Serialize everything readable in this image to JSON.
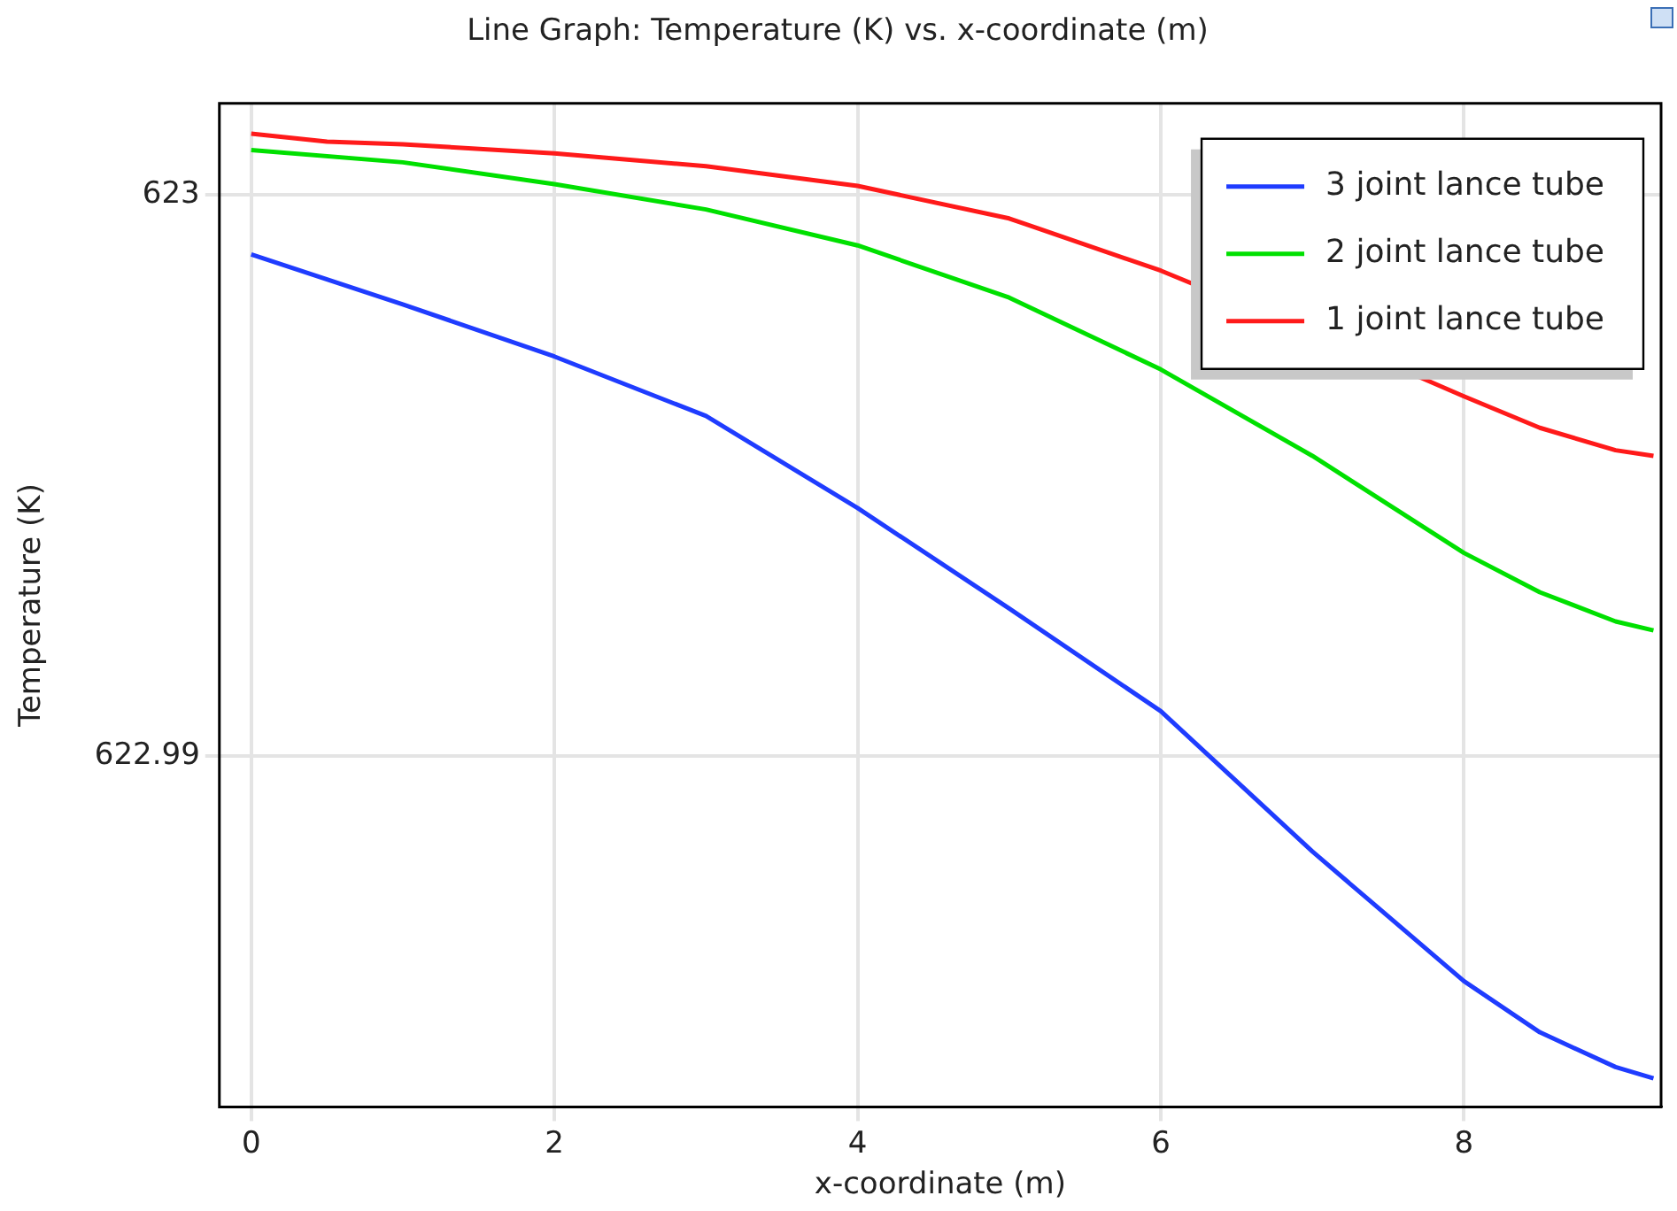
{
  "chart_data": {
    "type": "line",
    "title": "Line Graph: Temperature (K) vs. x-coordinate (m)",
    "xlabel": "x-coordinate (m)",
    "ylabel": "Temperature (K)",
    "xlim": [
      -0.21,
      9.3
    ],
    "xticks": [
      0,
      2,
      4,
      6,
      8
    ],
    "ylim": [
      622.98375,
      623.00163
    ],
    "yticks": [
      622.99,
      623
    ],
    "grid": true,
    "legend": "top right",
    "marker": "none",
    "line_style": "solid",
    "series": [
      {
        "name": "3 joint lance tube",
        "color": "#1f3cff",
        "x": [
          0,
          1,
          2,
          3,
          4,
          5,
          6,
          7,
          8,
          8.5,
          9,
          9.25
        ],
        "values": [
          622.99894,
          622.99805,
          622.99712,
          622.99606,
          622.99442,
          622.99263,
          622.9908,
          622.9883,
          622.98599,
          622.98508,
          622.98446,
          622.98426
        ]
      },
      {
        "name": "2 joint lance tube",
        "color": "#00e000",
        "x": [
          0,
          1,
          2,
          3,
          4,
          5,
          6,
          7,
          8,
          8.5,
          9,
          9.25
        ],
        "values": [
          623.0008,
          623.00058,
          623.00019,
          622.99974,
          622.9991,
          622.99817,
          622.99689,
          622.99535,
          622.99362,
          622.99292,
          622.9924,
          622.99224
        ]
      },
      {
        "name": "1 joint lance tube",
        "color": "#ff1a1a",
        "x": [
          0,
          0.5,
          1,
          2,
          3,
          4,
          5,
          6,
          7.7,
          8,
          8.5,
          9,
          9.25
        ],
        "values": [
          623.00109,
          623.00095,
          623.0009,
          623.00074,
          623.00051,
          623.00016,
          622.99958,
          622.99865,
          622.99676,
          622.99641,
          622.99585,
          622.99545,
          622.99535
        ]
      }
    ]
  }
}
